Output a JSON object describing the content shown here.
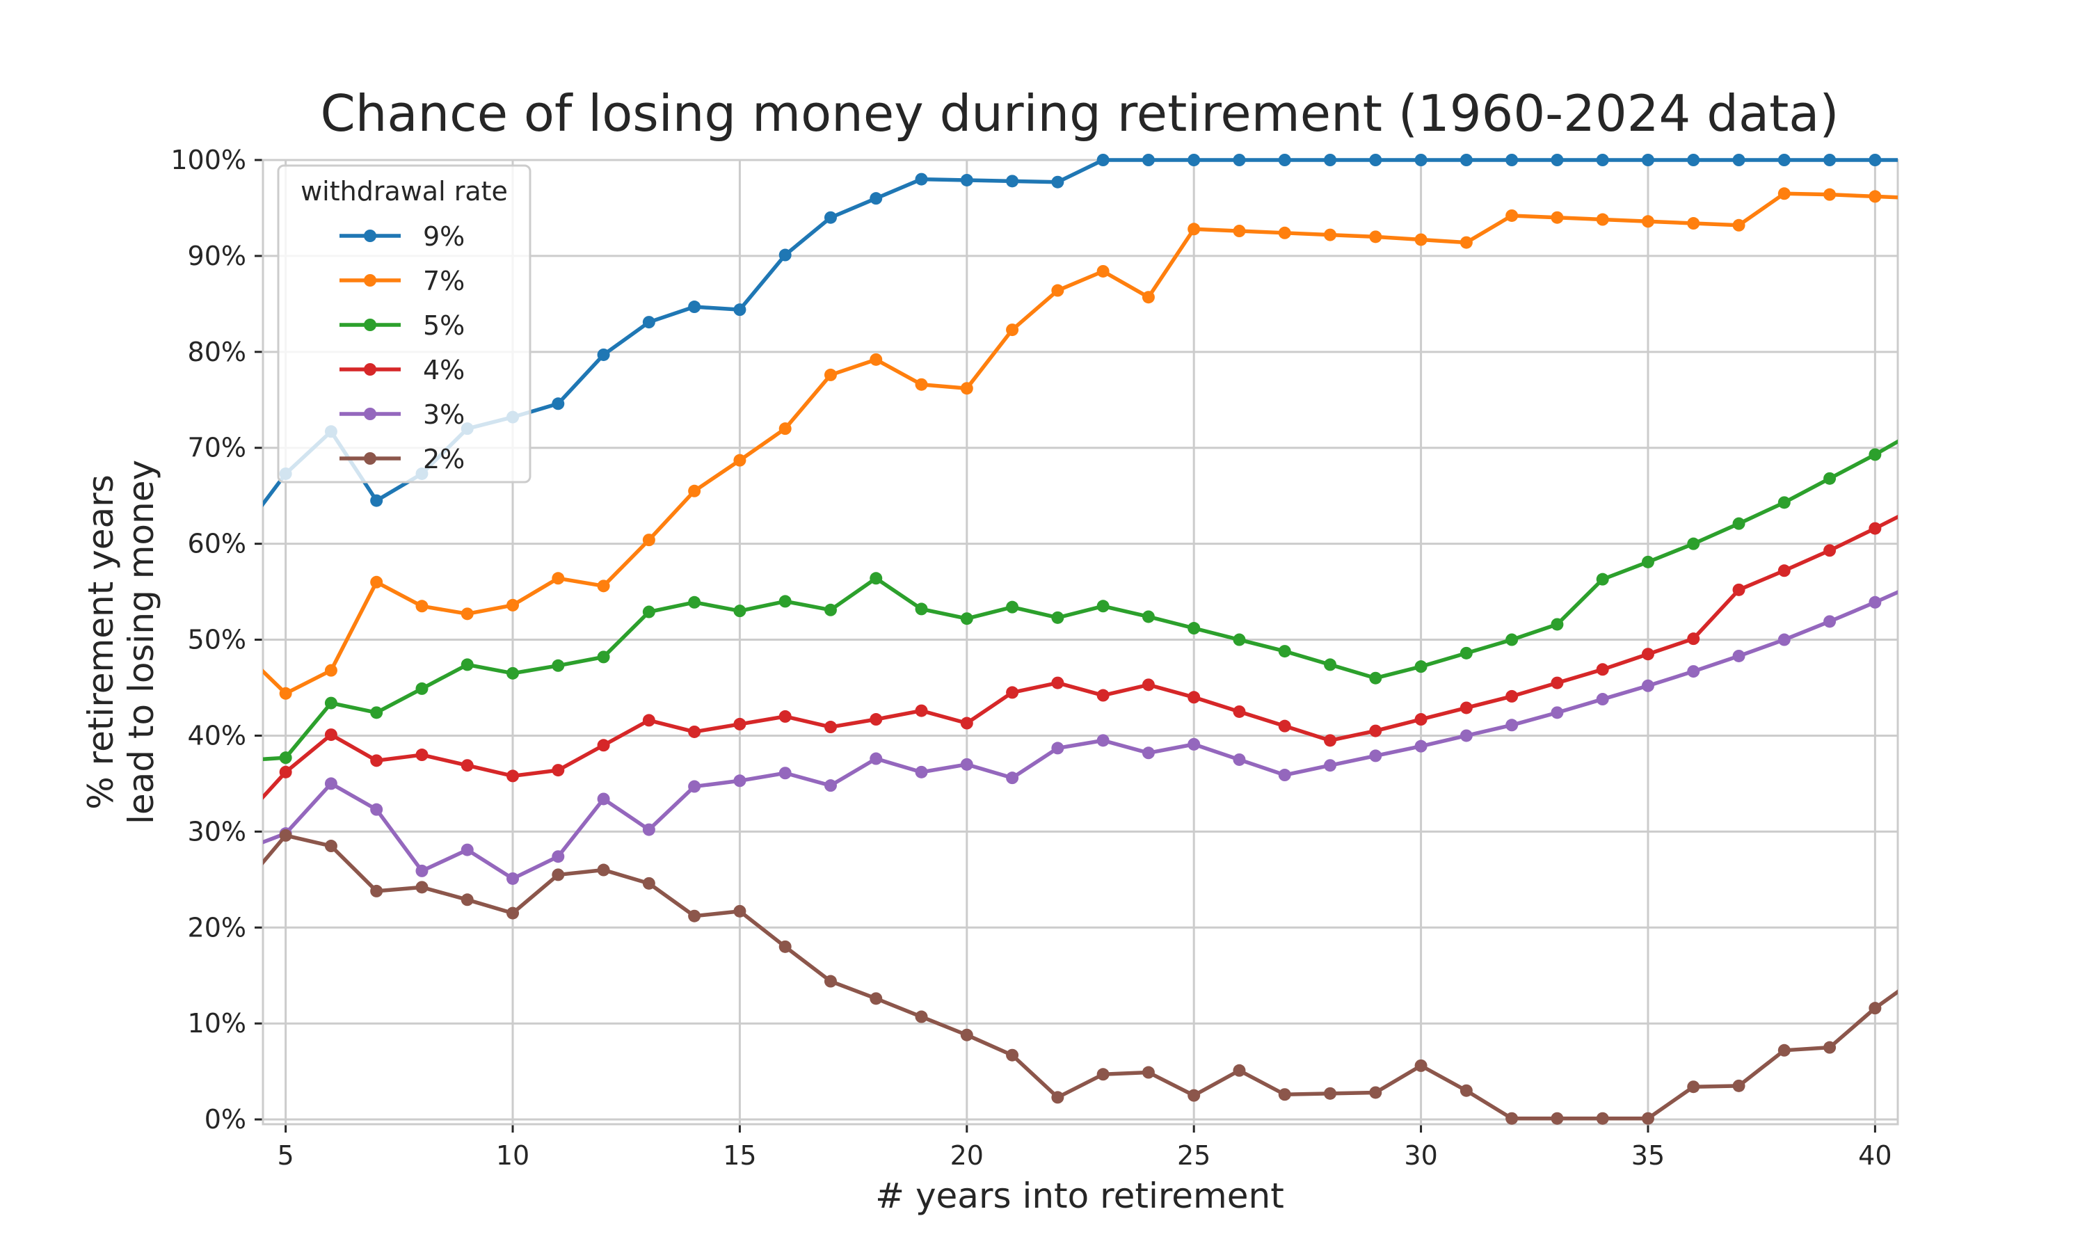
{
  "chart_data": {
    "type": "line",
    "title": "Chance of losing money during retirement (1960-2024 data)",
    "xlabel": "# years into retirement",
    "ylabel": [
      "% retirement years",
      "lead to losing money"
    ],
    "xlim": [
      4.5,
      40.5
    ],
    "ylim": [
      -0.5,
      100
    ],
    "x_ticks": [
      5,
      10,
      15,
      20,
      25,
      30,
      35,
      40
    ],
    "y_ticks": [
      0,
      10,
      20,
      30,
      40,
      50,
      60,
      70,
      80,
      90,
      100
    ],
    "y_tick_labels": [
      "0%",
      "10%",
      "20%",
      "30%",
      "40%",
      "50%",
      "60%",
      "70%",
      "80%",
      "90%",
      "100%"
    ],
    "grid": true,
    "legend": {
      "title": "withdrawal rate",
      "placement": "top-left"
    },
    "x": [
      4,
      5,
      6,
      7,
      8,
      9,
      10,
      11,
      12,
      13,
      14,
      15,
      16,
      17,
      18,
      19,
      20,
      21,
      22,
      23,
      24,
      25,
      26,
      27,
      28,
      29,
      30,
      31,
      32,
      33,
      34,
      35,
      36,
      37,
      38,
      39,
      40,
      41
    ],
    "series": [
      {
        "name": "9%",
        "color": "#1f77b4",
        "values": [
          61,
          67.3,
          71.7,
          64.5,
          67.3,
          72,
          73.2,
          74.6,
          79.7,
          83.1,
          84.7,
          84.4,
          90.1,
          94,
          96,
          98,
          97.9,
          97.8,
          97.7,
          100,
          100,
          100,
          100,
          100,
          100,
          100,
          100,
          100,
          100,
          100,
          100,
          100,
          100,
          100,
          100,
          100,
          100,
          100
        ]
      },
      {
        "name": "7%",
        "color": "#ff7f0e",
        "values": [
          49,
          44.4,
          46.8,
          56,
          53.5,
          52.7,
          53.6,
          56.4,
          55.6,
          60.4,
          65.5,
          68.7,
          72,
          77.6,
          79.2,
          76.6,
          76.2,
          82.3,
          86.4,
          88.4,
          85.7,
          92.8,
          92.6,
          92.4,
          92.2,
          92,
          91.7,
          91.4,
          94.2,
          94,
          93.8,
          93.6,
          93.4,
          93.2,
          96.5,
          96.4,
          96.2,
          96
        ]
      },
      {
        "name": "5%",
        "color": "#2ca02c",
        "values": [
          37.4,
          37.7,
          43.4,
          42.4,
          44.9,
          47.4,
          46.5,
          47.3,
          48.2,
          52.9,
          53.9,
          53,
          54,
          53.1,
          56.4,
          53.2,
          52.2,
          53.4,
          52.3,
          53.5,
          52.4,
          51.2,
          50,
          48.8,
          47.4,
          46,
          47.2,
          48.6,
          50,
          51.6,
          56.3,
          58.1,
          60,
          62.1,
          64.3,
          66.8,
          69.3,
          72
        ]
      },
      {
        "name": "4%",
        "color": "#d62728",
        "values": [
          31,
          36.2,
          40.1,
          37.4,
          38,
          36.9,
          35.8,
          36.4,
          39,
          41.6,
          40.4,
          41.2,
          42,
          40.9,
          41.7,
          42.6,
          41.3,
          44.5,
          45.5,
          44.2,
          45.3,
          44,
          42.5,
          41,
          39.5,
          40.5,
          41.7,
          42.9,
          44.1,
          45.5,
          46.9,
          48.5,
          50.1,
          55.2,
          57.2,
          59.3,
          61.6,
          64
        ]
      },
      {
        "name": "3%",
        "color": "#9467bd",
        "values": [
          28,
          29.8,
          35,
          32.3,
          25.9,
          28.1,
          25.1,
          27.4,
          33.4,
          30.2,
          34.7,
          35.3,
          36.1,
          34.8,
          37.6,
          36.2,
          37,
          35.6,
          38.7,
          39.5,
          38.2,
          39.1,
          37.5,
          35.9,
          36.9,
          37.9,
          38.9,
          40,
          41.1,
          42.4,
          43.8,
          45.2,
          46.7,
          48.3,
          50,
          51.9,
          53.9,
          56
        ]
      },
      {
        "name": "2%",
        "color": "#8c564b",
        "values": [
          24,
          29.6,
          28.5,
          23.8,
          24.2,
          22.9,
          21.5,
          25.5,
          26,
          24.6,
          21.2,
          21.7,
          18,
          14.4,
          12.6,
          10.7,
          8.8,
          6.7,
          2.3,
          4.7,
          4.9,
          2.5,
          5.1,
          2.6,
          2.7,
          2.8,
          5.6,
          3,
          0.1,
          0.1,
          0.1,
          0.1,
          3.4,
          3.5,
          7.2,
          7.5,
          11.6,
          15
        ]
      }
    ]
  }
}
